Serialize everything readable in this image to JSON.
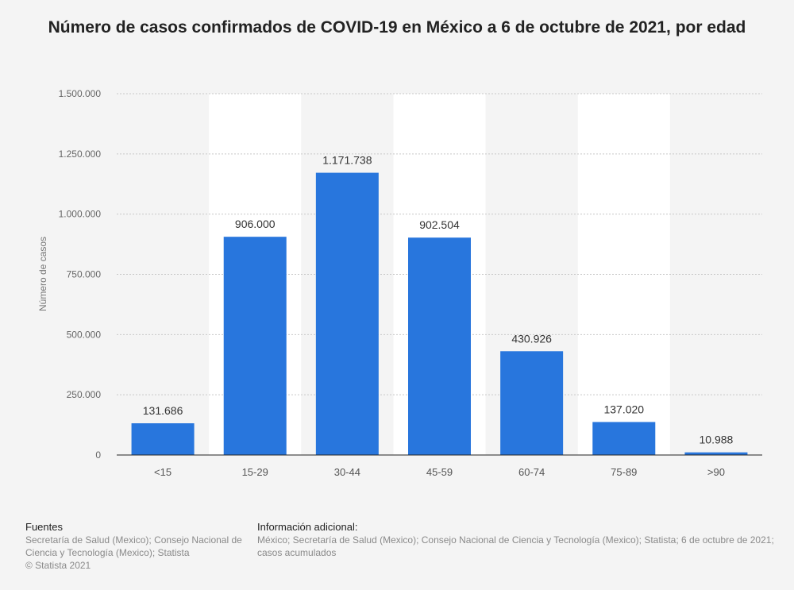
{
  "title": "Número de casos confirmados de COVID-19 en México a 6 de octubre de 2021, por edad",
  "footer": {
    "sources_heading": "Fuentes",
    "sources_text": "Secretaría de Salud (Mexico); Consejo Nacional de Ciencia y Tecnología (Mexico); Statista",
    "copyright": "© Statista 2021",
    "info_heading": "Información adicional:",
    "info_text": "México; Secretaría de Salud (Mexico); Consejo Nacional de Ciencia y Tecnología (Mexico); Statista; 6 de octubre de 2021; casos acumulados"
  },
  "chart_data": {
    "type": "bar",
    "categories": [
      "<15",
      "15-29",
      "30-44",
      "45-59",
      "60-74",
      "75-89",
      ">90"
    ],
    "values": [
      131686,
      906000,
      1171738,
      902504,
      430926,
      137020,
      10988
    ],
    "value_labels": [
      "131.686",
      "906.000",
      "1.171.738",
      "902.504",
      "430.926",
      "137.020",
      "10.988"
    ],
    "xlabel": "",
    "ylabel": "Número de casos",
    "ylim": [
      0,
      1500000
    ],
    "yticks": [
      0,
      250000,
      500000,
      750000,
      1000000,
      1250000,
      1500000
    ],
    "ytick_labels": [
      "0",
      "250.000",
      "500.000",
      "750.000",
      "1.000.000",
      "1.250.000",
      "1.500.000"
    ],
    "grid": true,
    "bar_color": "#2876dd"
  }
}
